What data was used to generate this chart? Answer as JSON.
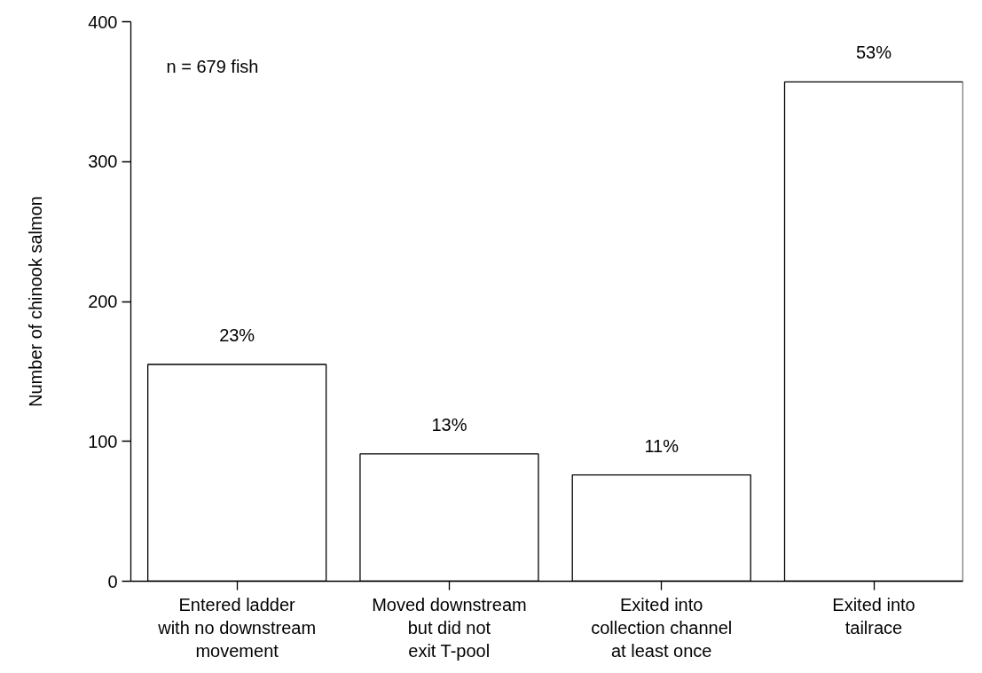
{
  "chart_data": {
    "type": "bar",
    "ylabel": "Number of chinook salmon",
    "categories": [
      "Entered ladder\nwith no downstream\nmovement",
      "Moved downstream\nbut did not\nexit T-pool",
      "Exited into\ncollection channel\nat least once",
      "Exited into\ntailrace"
    ],
    "values": [
      155,
      91,
      76,
      357
    ],
    "color": "#ffffff",
    "ylim": [
      0,
      400
    ],
    "yticks": [
      0,
      100,
      200,
      300,
      400
    ],
    "grid": false,
    "annotations": [
      "n = 679 fish",
      {
        "text": "23%",
        "x": "Entered ladder\nwith no downstream\nmovement",
        "y": 155
      },
      {
        "text": "13%",
        "x": "Moved downstream\nbut did not\nexit T-pool",
        "y": 91
      },
      {
        "text": "11%",
        "x": "Exited into\ncollection channel\nat least once",
        "y": 76
      },
      {
        "text": "53%",
        "x": "Exited into\ntailrace",
        "y": 357
      }
    ]
  }
}
